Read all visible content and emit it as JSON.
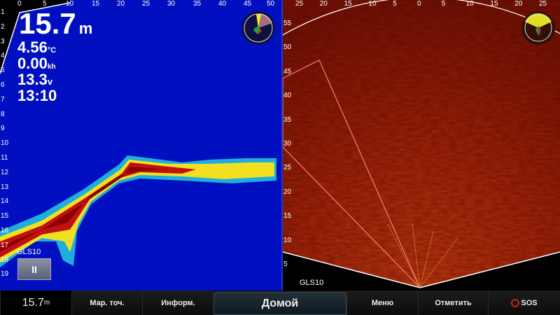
{
  "left_panel": {
    "depth": "15.7",
    "depth_unit": "m",
    "temperature": "4.56",
    "temperature_unit": "°C",
    "speed": "0.00",
    "speed_unit": "kh",
    "voltage": "13.3",
    "voltage_unit": "v",
    "time": "13:10",
    "source_label": "GLS10",
    "pause_label": "II",
    "top_scale": [
      "0",
      "5",
      "10",
      "15",
      "20",
      "25",
      "30",
      "35",
      "40",
      "45",
      "50"
    ],
    "depth_scale": [
      "1",
      "2",
      "3",
      "4",
      "5",
      "6",
      "7",
      "8",
      "9",
      "10",
      "11",
      "12",
      "13",
      "14",
      "15",
      "16",
      "17",
      "18",
      "19"
    ],
    "background_color": "#0010c0"
  },
  "right_panel": {
    "source_label": "GLS10",
    "top_scale": [
      "25",
      "20",
      "15",
      "10",
      "5",
      "0",
      "5",
      "10",
      "15",
      "20",
      "25"
    ],
    "range_scale": [
      "55",
      "50",
      "45",
      "40",
      "35",
      "30",
      "25",
      "20",
      "15",
      "10",
      "5"
    ]
  },
  "bottom_bar": {
    "depth_value": "15.7",
    "depth_unit": "m",
    "buttons": [
      "Мар. точ.",
      "Информ.",
      "Домой",
      "Меню",
      "Отметить",
      "SOS"
    ]
  }
}
